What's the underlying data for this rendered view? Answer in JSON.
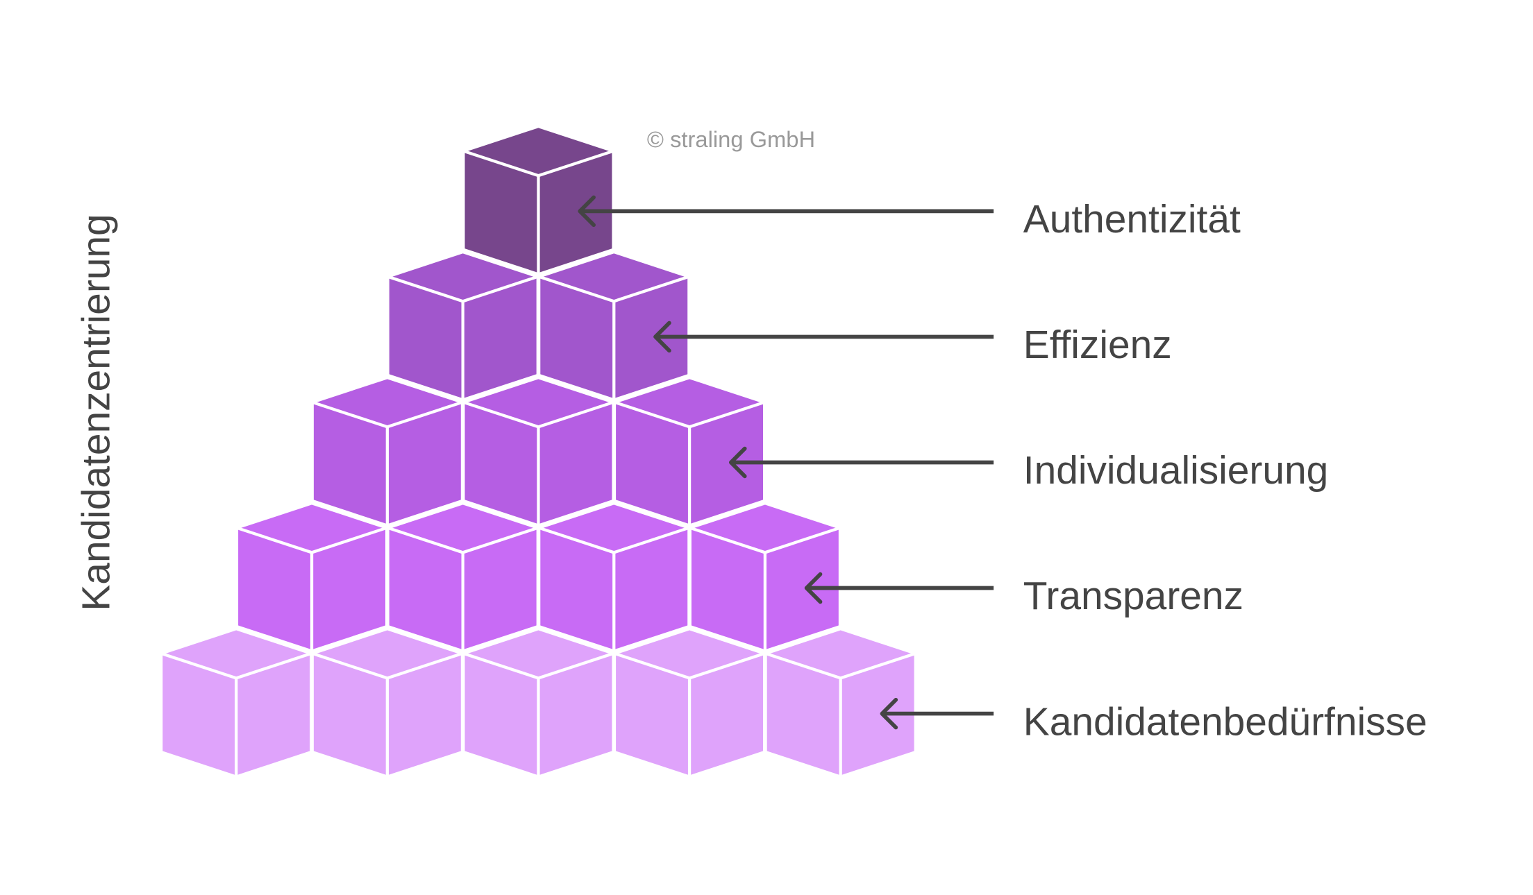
{
  "axis_label": "Kandidatenzentrierung",
  "copyright": "© straling GmbH",
  "levels": [
    {
      "label": "Authentizität"
    },
    {
      "label": "Effizienz"
    },
    {
      "label": "Individualisierung"
    },
    {
      "label": "Transparenz"
    },
    {
      "label": "Kandidatenbedürfnisse"
    }
  ]
}
